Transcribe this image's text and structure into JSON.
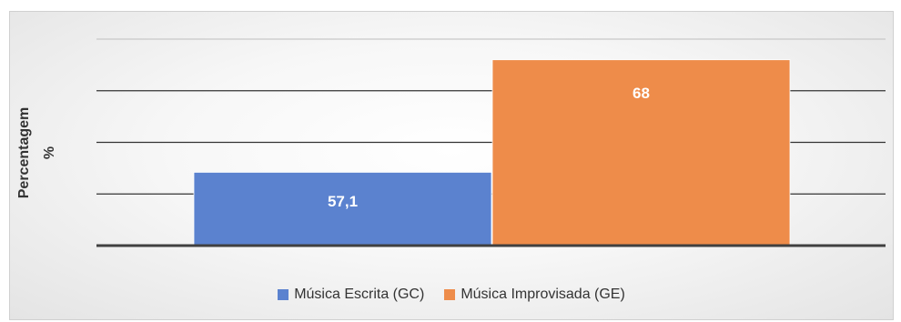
{
  "chart_data": {
    "type": "bar",
    "title": "",
    "ylabel": "Percentagem",
    "ylabel_unit": "%",
    "categories": [
      "Música Escrita (GC)",
      "Música Improvisada (GE)"
    ],
    "values": [
      57.1,
      68
    ],
    "value_labels": [
      "57,1",
      "68"
    ],
    "ylim": [
      50,
      70
    ],
    "grid": true,
    "legend_position": "bottom",
    "colors": [
      "#5B82CF",
      "#EE8C4A"
    ]
  }
}
